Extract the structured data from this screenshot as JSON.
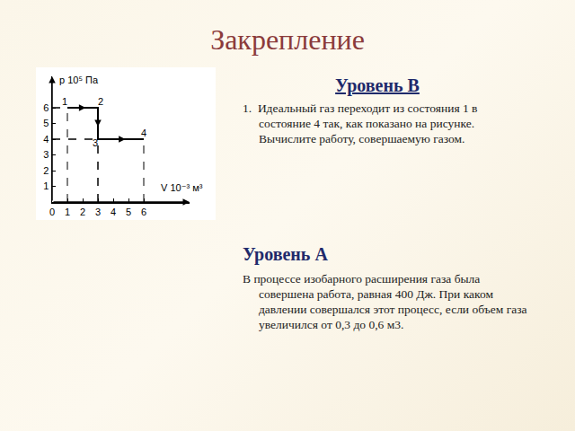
{
  "slide": {
    "title": "Закрепление",
    "level_b": {
      "heading": "Уровень В",
      "items": [
        {
          "number": "1.",
          "text": "Идеальный газ переходит из состояния 1 в состояние 4 так, как показано на рисунке. Вычислите работу, совершаемую газом."
        }
      ]
    },
    "level_a": {
      "heading": "Уровень А",
      "text": "В процессе изобарного расширения газа была совершена работа, равная 400 Дж. При каком давлении совершался этот процесс, если объем газа увеличился от 0,3 до 0,6 м3."
    }
  },
  "chart_data": {
    "type": "line",
    "xlabel": "V 10⁻³ м³",
    "ylabel": "p 10⁵ Па",
    "x": [
      1,
      3,
      3,
      6
    ],
    "values": [
      6,
      6,
      4,
      4
    ],
    "point_labels": [
      "1",
      "2",
      "3",
      "4"
    ],
    "xlim": [
      0,
      9
    ],
    "ylim": [
      0,
      8
    ],
    "xticks": [
      0,
      1,
      2,
      3,
      4,
      5,
      6
    ],
    "yticks": [
      1,
      2,
      3,
      4,
      5,
      6
    ],
    "color": "#000000",
    "line_style": "solid",
    "grid": false
  }
}
